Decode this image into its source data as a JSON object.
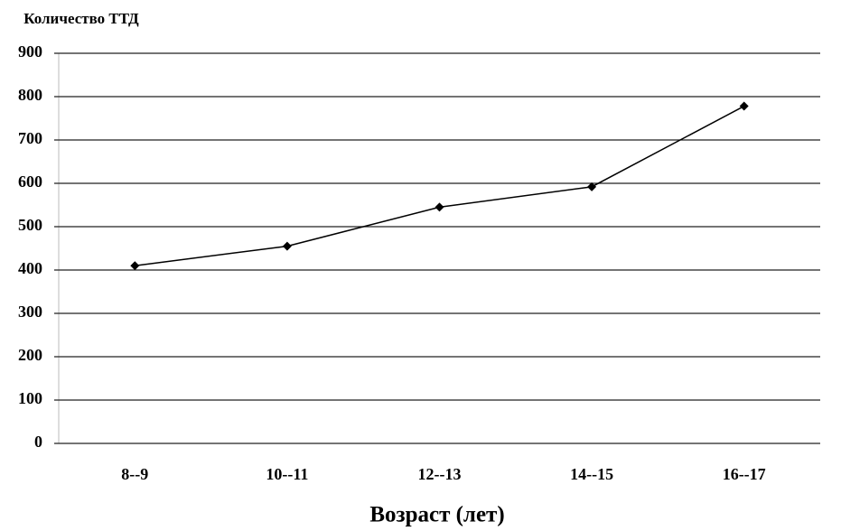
{
  "chart_data": {
    "type": "line",
    "y_label": "Количество ТТД",
    "x_label": "Возраст (лет)",
    "categories": [
      "8--9",
      "10--11",
      "12--13",
      "14--15",
      "16--17"
    ],
    "values": [
      410,
      455,
      545,
      592,
      778
    ],
    "color": "#000000",
    "ylim": [
      0,
      900
    ],
    "yticks": [
      0,
      100,
      200,
      300,
      400,
      500,
      600,
      700,
      800,
      900
    ],
    "grid": true
  }
}
